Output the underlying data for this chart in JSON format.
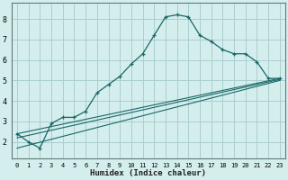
{
  "xlabel": "Humidex (Indice chaleur)",
  "bg_color": "#d4eeee",
  "grid_color": "#aacece",
  "line_color": "#1a6666",
  "spine_color": "#607878",
  "xlim": [
    -0.5,
    23.5
  ],
  "ylim": [
    1.2,
    8.8
  ],
  "xticks": [
    0,
    1,
    2,
    3,
    4,
    5,
    6,
    7,
    8,
    9,
    10,
    11,
    12,
    13,
    14,
    15,
    16,
    17,
    18,
    19,
    20,
    21,
    22,
    23
  ],
  "yticks": [
    2,
    3,
    4,
    5,
    6,
    7,
    8
  ],
  "main_curve_x": [
    0,
    1,
    2,
    3,
    4,
    5,
    6,
    7,
    8,
    9,
    10,
    11,
    12,
    13,
    14,
    15,
    16,
    17,
    18,
    19,
    20,
    21,
    22,
    23
  ],
  "main_curve_y": [
    2.4,
    2.0,
    1.7,
    2.9,
    3.2,
    3.2,
    3.5,
    4.4,
    4.8,
    5.2,
    5.8,
    6.3,
    7.2,
    8.1,
    8.2,
    8.1,
    7.2,
    6.9,
    6.5,
    6.3,
    6.3,
    5.9,
    5.1,
    5.1
  ],
  "line1_y": [
    2.4,
    5.1
  ],
  "line2_y": [
    2.2,
    5.05
  ],
  "line3_y": [
    1.7,
    5.0
  ]
}
